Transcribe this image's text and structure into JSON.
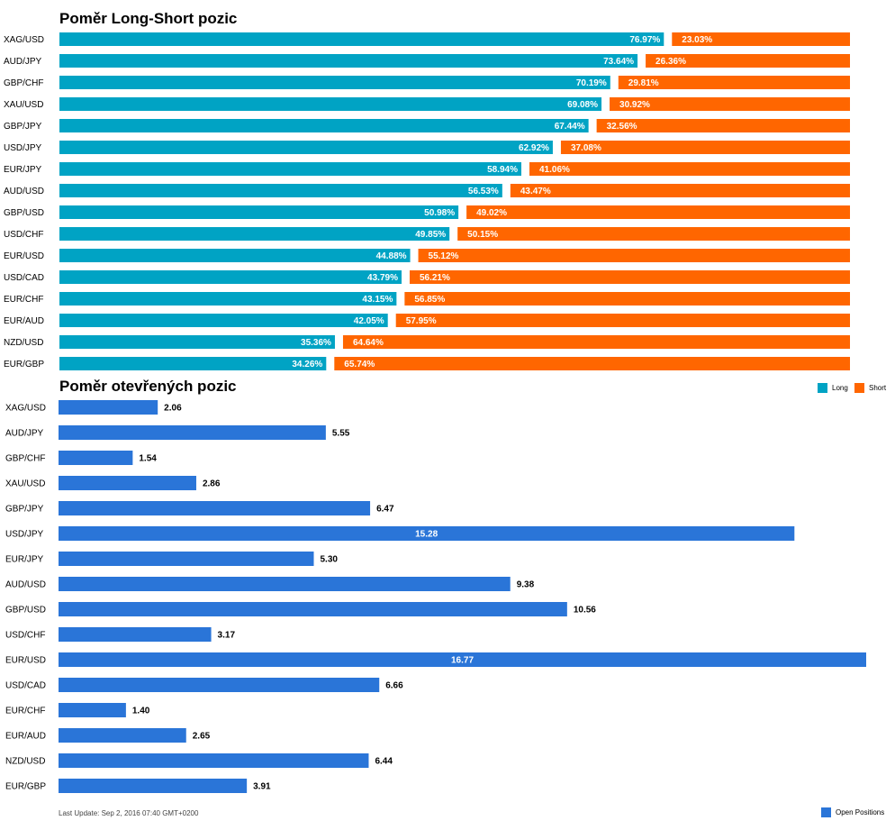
{
  "chart_data": [
    {
      "type": "bar",
      "orientation": "horizontal",
      "stacked": true,
      "title": "Poměr Long-Short pozic",
      "categories": [
        "XAG/USD",
        "AUD/JPY",
        "GBP/CHF",
        "XAU/USD",
        "GBP/JPY",
        "USD/JPY",
        "EUR/JPY",
        "AUD/USD",
        "GBP/USD",
        "USD/CHF",
        "EUR/USD",
        "USD/CAD",
        "EUR/CHF",
        "EUR/AUD",
        "NZD/USD",
        "EUR/GBP"
      ],
      "series": [
        {
          "name": "Long",
          "color": "#00a3c4",
          "values": [
            76.97,
            73.64,
            70.19,
            69.08,
            67.44,
            62.92,
            58.94,
            56.53,
            50.98,
            49.85,
            44.88,
            43.79,
            43.15,
            42.05,
            35.36,
            34.26
          ],
          "labels": [
            "76.97%",
            "73.64%",
            "70.19%",
            "69.08%",
            "67.44%",
            "62.92%",
            "58.94%",
            "56.53%",
            "50.98%",
            "49.85%",
            "44.88%",
            "43.79%",
            "43.15%",
            "42.05%",
            "35.36%",
            "34.26%"
          ]
        },
        {
          "name": "Short",
          "color": "#ff6600",
          "values": [
            23.03,
            26.36,
            29.81,
            30.92,
            32.56,
            37.08,
            41.06,
            43.47,
            49.02,
            50.15,
            55.12,
            56.21,
            56.85,
            57.95,
            64.64,
            65.74
          ],
          "labels": [
            "23.03%",
            "26.36%",
            "29.81%",
            "30.92%",
            "32.56%",
            "37.08%",
            "41.06%",
            "43.47%",
            "49.02%",
            "50.15%",
            "55.12%",
            "56.21%",
            "56.85%",
            "57.95%",
            "64.64%",
            "65.74%"
          ]
        }
      ],
      "xlim": [
        0,
        100
      ],
      "legend": "bottom-right"
    },
    {
      "type": "bar",
      "orientation": "horizontal",
      "title": "Poměr otevřených pozic",
      "categories": [
        "XAG/USD",
        "AUD/JPY",
        "GBP/CHF",
        "XAU/USD",
        "GBP/JPY",
        "USD/JPY",
        "EUR/JPY",
        "AUD/USD",
        "GBP/USD",
        "USD/CHF",
        "EUR/USD",
        "USD/CAD",
        "EUR/CHF",
        "EUR/AUD",
        "NZD/USD",
        "EUR/GBP"
      ],
      "series": [
        {
          "name": "Open Positions",
          "color": "#2a75d8",
          "values": [
            2.06,
            5.55,
            1.54,
            2.86,
            6.47,
            15.28,
            5.3,
            9.38,
            10.56,
            3.17,
            16.77,
            6.66,
            1.4,
            2.65,
            6.44,
            3.91
          ],
          "labels": [
            "2.06",
            "5.55",
            "1.54",
            "2.86",
            "6.47",
            "15.28",
            "5.30",
            "9.38",
            "10.56",
            "3.17",
            "16.77",
            "6.66",
            "1.40",
            "2.65",
            "6.44",
            "3.91"
          ]
        }
      ],
      "xlim": [
        0,
        16.77
      ],
      "legend": "bottom-right"
    }
  ],
  "footer": {
    "last_update": "Last Update: Sep 2, 2016 07:40 GMT+0200"
  }
}
